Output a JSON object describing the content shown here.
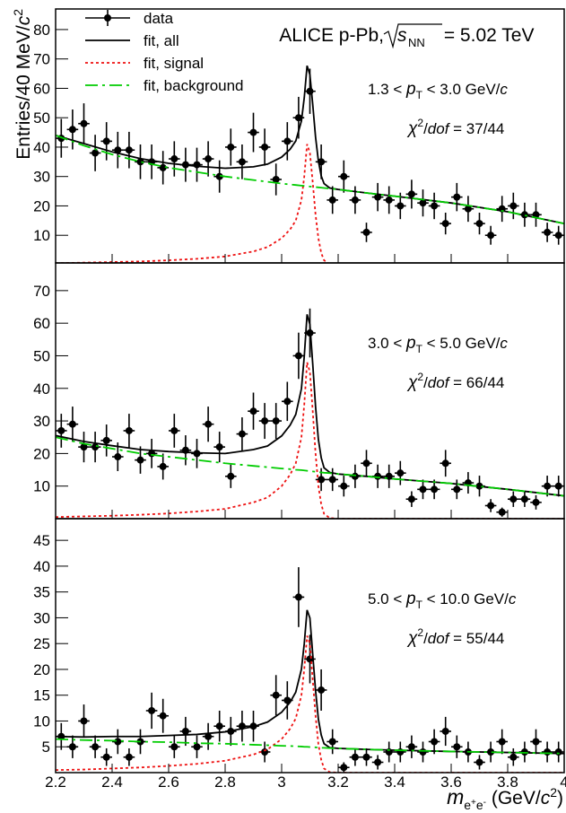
{
  "chart_data": {
    "type": "errorbar",
    "title": [
      "ALICE p-Pb, ",
      "s",
      "NN",
      " = 5.02 TeV"
    ],
    "ylabel": [
      "Entries/40 MeV/",
      "c",
      "2"
    ],
    "xlabel": [
      "m",
      "e",
      "+",
      "e",
      "-",
      " (GeV/",
      "c",
      "2",
      ")"
    ],
    "xlim": [
      2.2,
      4.0
    ],
    "xticks": [
      2.2,
      2.4,
      2.6,
      2.8,
      3,
      3.2,
      3.4,
      3.6,
      3.8,
      4
    ],
    "x": [
      2.22,
      2.26,
      2.3,
      2.34,
      2.38,
      2.42,
      2.46,
      2.5,
      2.54,
      2.58,
      2.62,
      2.66,
      2.7,
      2.74,
      2.78,
      2.82,
      2.86,
      2.9,
      2.94,
      2.98,
      3.02,
      3.06,
      3.1,
      3.14,
      3.18,
      3.22,
      3.26,
      3.3,
      3.34,
      3.38,
      3.42,
      3.46,
      3.5,
      3.54,
      3.58,
      3.62,
      3.66,
      3.7,
      3.74,
      3.78,
      3.82,
      3.86,
      3.9,
      3.94,
      3.98
    ],
    "xerr": 0.02,
    "fit_x": [
      2.2,
      2.3,
      2.4,
      2.5,
      2.6,
      2.7,
      2.8,
      2.9,
      2.95,
      3.0,
      3.03,
      3.05,
      3.07,
      3.08,
      3.09,
      3.1,
      3.11,
      3.12,
      3.13,
      3.14,
      3.15,
      3.17,
      3.2,
      3.3,
      3.4,
      3.6,
      3.8,
      4.0
    ],
    "panels": [
      {
        "label": [
          "1.3 < ",
          "p",
          "T",
          " < 3.0 GeV/",
          "c"
        ],
        "chi2": [
          "χ",
          "2",
          "/",
          "dof",
          " = 37/44"
        ],
        "ylim": [
          0.6,
          87
        ],
        "yticks": [
          10,
          20,
          30,
          40,
          50,
          60,
          70,
          80
        ],
        "series": [
          {
            "name": "data",
            "color": "#000000",
            "values": [
              43,
              46,
              48,
              38,
              42,
              39,
              39,
              35,
              35,
              33,
              36,
              34,
              34,
              36,
              30,
              40,
              35,
              45,
              40,
              29,
              42,
              50,
              59,
              35,
              22,
              30,
              22,
              11,
              23,
              22,
              20,
              24,
              21,
              20,
              14,
              23,
              19,
              14,
              10,
              19,
              20,
              17,
              17,
              11,
              10
            ],
            "errors": [
              6.6,
              6.8,
              6.9,
              6.2,
              6.5,
              6.2,
              6.2,
              5.9,
              5.9,
              5.7,
              6,
              5.8,
              5.8,
              6,
              5.5,
              6.3,
              5.9,
              6.7,
              6.3,
              5.4,
              6.5,
              7.1,
              7.7,
              5.9,
              4.7,
              5.5,
              4.7,
              3.3,
              4.8,
              4.7,
              4.5,
              4.9,
              4.6,
              4.5,
              3.7,
              4.8,
              4.4,
              3.7,
              3.2,
              4.4,
              4.5,
              4.1,
              4.1,
              3.3,
              3.2
            ]
          },
          {
            "name": "fit, all",
            "color": "#000000",
            "style": "solid",
            "values": [
              44,
              41.2,
              38.4,
              36.1,
              34.5,
              33.5,
              32.8,
              33.3,
              34.2,
              36.6,
              39.3,
              42.1,
              48.9,
              56.8,
              67.7,
              64.6,
              54.5,
              43.4,
              35.3,
              30.2,
              27.6,
              26.1,
              25.6,
              24.4,
              23.3,
              21,
              18,
              14
            ]
          },
          {
            "name": "fit, signal",
            "color": "#ee1111",
            "style": "dotted",
            "values": [
              0.5,
              0.7,
              0.9,
              1.1,
              1.5,
              2,
              2.8,
              4.5,
              6,
              9,
              12,
              15,
              22,
              30,
              41,
              38,
              28,
              17,
              9,
              4,
              1.5,
              0.2,
              0,
              0,
              0,
              0,
              0,
              0
            ]
          },
          {
            "name": "fit, background",
            "color": "#00cc00",
            "style": "dashdot",
            "values": [
              44,
              40.5,
              37.5,
              35,
              33,
              31.5,
              30,
              28.8,
              28.2,
              27.6,
              27.3,
              27.1,
              26.9,
              26.8,
              26.7,
              26.6,
              26.5,
              26.4,
              26.3,
              26.2,
              26.1,
              25.9,
              25.6,
              24.4,
              23.3,
              21,
              18,
              14
            ]
          }
        ]
      },
      {
        "label": [
          "3.0 < ",
          "p",
          "T",
          " < 5.0 GeV/",
          "c"
        ],
        "chi2": [
          "χ",
          "2",
          "/",
          "dof",
          " = 66/44"
        ],
        "ylim": [
          0,
          78.5
        ],
        "yticks": [
          10,
          20,
          30,
          40,
          50,
          60,
          70
        ],
        "series": [
          {
            "color": "#000000",
            "values": [
              27,
              29,
              22,
              22,
              24,
              19,
              27,
              18,
              20,
              16,
              27,
              21,
              20,
              29,
              22,
              13,
              26,
              33,
              30,
              30,
              36,
              50,
              57,
              12,
              12,
              10,
              13,
              17,
              13,
              13,
              14,
              6,
              9,
              9,
              17,
              9,
              11,
              10,
              4,
              2,
              6,
              6,
              5,
              10,
              10
            ],
            "errors": [
              5.2,
              5.4,
              4.7,
              4.7,
              4.9,
              4.4,
              5.2,
              4.2,
              4.5,
              4,
              5.2,
              4.6,
              4.5,
              5.4,
              4.7,
              3.6,
              5.1,
              5.7,
              5.5,
              5.5,
              6,
              7.1,
              7.5,
              3.5,
              3.5,
              3.2,
              3.6,
              4.1,
              3.6,
              3.6,
              3.7,
              2.4,
              3,
              3,
              4.1,
              3,
              3.3,
              3.2,
              2,
              1.4,
              2.4,
              2.4,
              2.2,
              3.2,
              3.2
            ]
          },
          {
            "color": "#000000",
            "style": "solid",
            "values": [
              25.5,
              23.7,
              22.4,
              21.2,
              20.6,
              20.2,
              20,
              21.2,
              22.3,
              25.4,
              28.7,
              32,
              39.9,
              49.8,
              62.7,
              59.6,
              47.5,
              34.4,
              24.3,
              18.7,
              15.6,
              14.2,
              13.7,
              13,
              12.2,
              10.8,
              9,
              7
            ]
          },
          {
            "color": "#ee1111",
            "style": "dotted",
            "values": [
              0.5,
              0.7,
              0.9,
              1.2,
              1.6,
              2.2,
              3,
              5,
              6.5,
              10,
              13.5,
              17,
              25,
              35,
              48,
              45,
              33,
              20,
              10,
              4.5,
              1.5,
              0.2,
              0,
              0,
              0,
              0,
              0,
              0
            ]
          },
          {
            "color": "#00cc00",
            "style": "dashdot",
            "values": [
              25,
              23,
              21.5,
              20,
              19,
              18,
              17,
              16.2,
              15.8,
              15.4,
              15.2,
              15,
              14.9,
              14.8,
              14.7,
              14.6,
              14.5,
              14.4,
              14.3,
              14.2,
              14.1,
              14,
              13.7,
              13,
              12.2,
              10.8,
              9,
              7
            ]
          }
        ]
      },
      {
        "label": [
          "5.0 < ",
          "p",
          "T",
          " < 10.0 GeV/",
          "c"
        ],
        "chi2": [
          "χ",
          "2",
          "/",
          "dof",
          " = 55/44"
        ],
        "ylim": [
          0,
          49.2
        ],
        "yticks": [
          5,
          10,
          15,
          20,
          25,
          30,
          35,
          40,
          45
        ],
        "series": [
          {
            "color": "#000000",
            "values": [
              7,
              5,
              10,
              5,
              3,
              6,
              3,
              6,
              12,
              11,
              5,
              8,
              5,
              7,
              9,
              8,
              9,
              9,
              4,
              15,
              14,
              34,
              22,
              16,
              6,
              1,
              3,
              3,
              2,
              4,
              4,
              5,
              4,
              6,
              8,
              5,
              4,
              2,
              4,
              6,
              3,
              4,
              6,
              4,
              4
            ],
            "errors": [
              2.6,
              2.2,
              3.2,
              2.2,
              1.7,
              2.4,
              1.7,
              2.4,
              3.5,
              3.3,
              2.2,
              2.8,
              2.2,
              2.6,
              3,
              2.8,
              3,
              3,
              2,
              3.9,
              3.7,
              5.8,
              4.7,
              4,
              2.4,
              1,
              1.7,
              1.7,
              1.4,
              2,
              2,
              2.2,
              2,
              2.4,
              2.8,
              2.2,
              2,
              1.4,
              2,
              2.4,
              1.7,
              2,
              2.4,
              2,
              2
            ]
          },
          {
            "color": "#000000",
            "style": "solid",
            "values": [
              7,
              6.9,
              7,
              7,
              7.2,
              7.4,
              7.9,
              8.9,
              9.8,
              11.7,
              13.65,
              15.6,
              20.05,
              25,
              31.5,
              29.95,
              22.9,
              15.9,
              10.35,
              7.3,
              5.6,
              4.85,
              4.7,
              4.5,
              4.35,
              4.1,
              3.9,
              3.7
            ]
          },
          {
            "color": "#ee1111",
            "style": "dotted",
            "values": [
              0.5,
              0.6,
              0.8,
              1,
              1.3,
              1.7,
              2.3,
              3.5,
              4.5,
              6.5,
              8.5,
              10.5,
              15,
              20,
              26.5,
              25,
              18,
              11,
              5.5,
              2.5,
              0.8,
              0.1,
              0,
              0,
              0,
              0,
              0,
              0
            ]
          },
          {
            "color": "#00cc00",
            "style": "dashdot",
            "values": [
              6.5,
              6.3,
              6.2,
              6,
              5.9,
              5.7,
              5.6,
              5.4,
              5.3,
              5.2,
              5.15,
              5.1,
              5.05,
              5.0,
              5.0,
              4.95,
              4.9,
              4.9,
              4.85,
              4.8,
              4.8,
              4.75,
              4.7,
              4.5,
              4.35,
              4.1,
              3.9,
              3.7
            ]
          }
        ]
      }
    ]
  }
}
